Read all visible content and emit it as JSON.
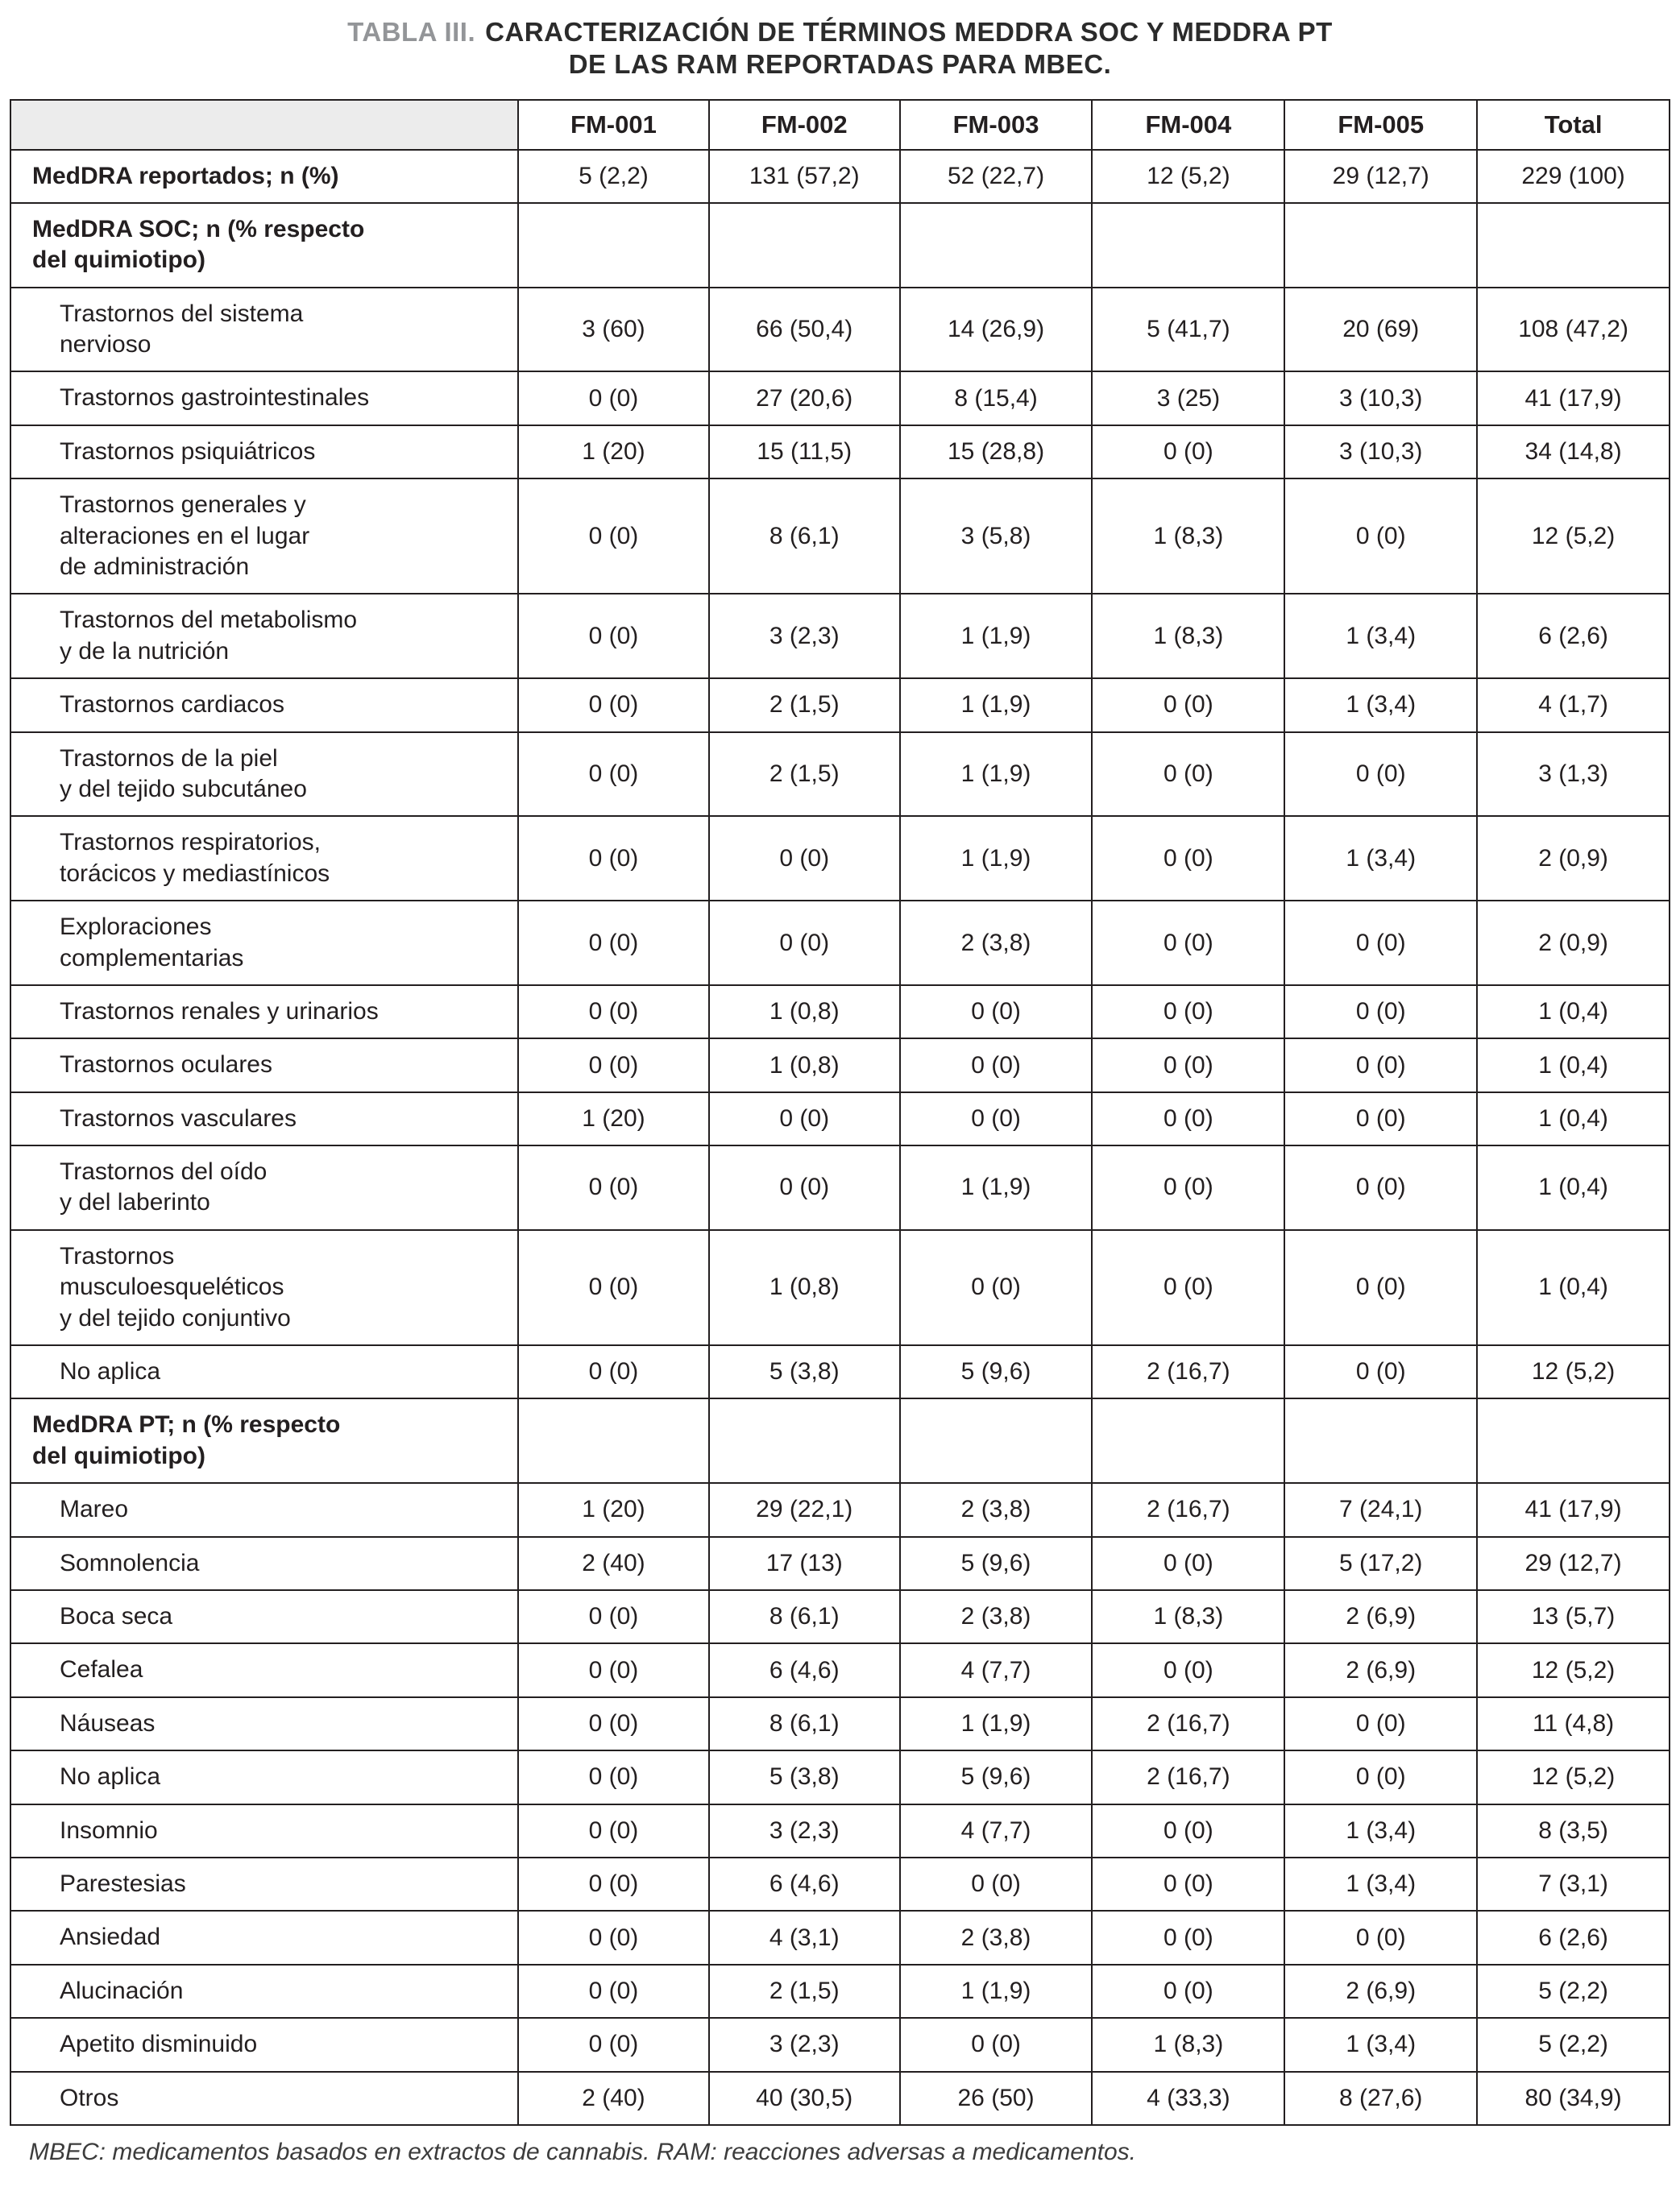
{
  "title": {
    "label": "TABLA III.",
    "text": "CARACTERIZACIÓN DE TÉRMINOS MEDDRA SOC Y MEDDRA PT\nDE LAS RAM REPORTADAS PARA MBEC."
  },
  "table": {
    "columns": [
      "",
      "FM-001",
      "FM-002",
      "FM-003",
      "FM-004",
      "FM-005",
      "Total"
    ],
    "rows": [
      {
        "label": "MedDRA reportados; n (%)",
        "style": "bold",
        "values": [
          "5 (2,2)",
          "131 (57,2)",
          "52 (22,7)",
          "12 (5,2)",
          "29 (12,7)",
          "229 (100)"
        ]
      },
      {
        "label": "MedDRA SOC; n (% respecto\ndel quimiotipo)",
        "style": "section",
        "values": [
          "",
          "",
          "",
          "",
          "",
          ""
        ]
      },
      {
        "label": "Trastornos del sistema\nnervioso",
        "style": "item",
        "values": [
          "3 (60)",
          "66 (50,4)",
          "14 (26,9)",
          "5 (41,7)",
          "20 (69)",
          "108 (47,2)"
        ]
      },
      {
        "label": "Trastornos gastrointestinales",
        "style": "item",
        "values": [
          "0 (0)",
          "27 (20,6)",
          "8 (15,4)",
          "3 (25)",
          "3 (10,3)",
          "41 (17,9)"
        ]
      },
      {
        "label": "Trastornos psiquiátricos",
        "style": "item",
        "values": [
          "1 (20)",
          "15 (11,5)",
          "15 (28,8)",
          "0 (0)",
          "3 (10,3)",
          "34 (14,8)"
        ]
      },
      {
        "label": "Trastornos generales y\nalteraciones en el lugar\nde administración",
        "style": "item",
        "values": [
          "0 (0)",
          "8 (6,1)",
          "3 (5,8)",
          "1 (8,3)",
          "0 (0)",
          "12 (5,2)"
        ]
      },
      {
        "label": "Trastornos del metabolismo\ny de la nutrición",
        "style": "item",
        "values": [
          "0 (0)",
          "3 (2,3)",
          "1 (1,9)",
          "1 (8,3)",
          "1 (3,4)",
          "6 (2,6)"
        ]
      },
      {
        "label": "Trastornos cardiacos",
        "style": "item",
        "values": [
          "0 (0)",
          "2 (1,5)",
          "1 (1,9)",
          "0 (0)",
          "1 (3,4)",
          "4 (1,7)"
        ]
      },
      {
        "label": "Trastornos de la piel\ny del tejido subcutáneo",
        "style": "item",
        "values": [
          "0 (0)",
          "2 (1,5)",
          "1 (1,9)",
          "0 (0)",
          "0 (0)",
          "3 (1,3)"
        ]
      },
      {
        "label": "Trastornos respiratorios,\ntorácicos y mediastínicos",
        "style": "item",
        "values": [
          "0 (0)",
          "0 (0)",
          "1 (1,9)",
          "0 (0)",
          "1 (3,4)",
          "2 (0,9)"
        ]
      },
      {
        "label": "Exploraciones\ncomplementarias",
        "style": "item",
        "values": [
          "0 (0)",
          "0 (0)",
          "2 (3,8)",
          "0 (0)",
          "0 (0)",
          "2 (0,9)"
        ]
      },
      {
        "label": "Trastornos renales y urinarios",
        "style": "item",
        "values": [
          "0 (0)",
          "1 (0,8)",
          "0 (0)",
          "0 (0)",
          "0 (0)",
          "1 (0,4)"
        ]
      },
      {
        "label": "Trastornos oculares",
        "style": "item",
        "values": [
          "0 (0)",
          "1 (0,8)",
          "0 (0)",
          "0 (0)",
          "0 (0)",
          "1 (0,4)"
        ]
      },
      {
        "label": "Trastornos vasculares",
        "style": "item",
        "values": [
          "1 (20)",
          "0 (0)",
          "0 (0)",
          "0 (0)",
          "0 (0)",
          "1 (0,4)"
        ]
      },
      {
        "label": "Trastornos del oído\ny del laberinto",
        "style": "item",
        "values": [
          "0 (0)",
          "0 (0)",
          "1 (1,9)",
          "0 (0)",
          "0 (0)",
          "1 (0,4)"
        ]
      },
      {
        "label": "Trastornos\nmusculoesqueléticos\ny del tejido conjuntivo",
        "style": "item",
        "values": [
          "0 (0)",
          "1 (0,8)",
          "0 (0)",
          "0 (0)",
          "0 (0)",
          "1 (0,4)"
        ]
      },
      {
        "label": "No aplica",
        "style": "item",
        "values": [
          "0 (0)",
          "5 (3,8)",
          "5 (9,6)",
          "2 (16,7)",
          "0 (0)",
          "12 (5,2)"
        ]
      },
      {
        "label": "MedDRA PT; n (% respecto\ndel quimiotipo)",
        "style": "section",
        "values": [
          "",
          "",
          "",
          "",
          "",
          ""
        ]
      },
      {
        "label": "Mareo",
        "style": "item",
        "values": [
          "1 (20)",
          "29 (22,1)",
          "2 (3,8)",
          "2 (16,7)",
          "7 (24,1)",
          "41 (17,9)"
        ]
      },
      {
        "label": "Somnolencia",
        "style": "item",
        "values": [
          "2 (40)",
          "17 (13)",
          "5 (9,6)",
          "0 (0)",
          "5 (17,2)",
          "29 (12,7)"
        ]
      },
      {
        "label": "Boca seca",
        "style": "item",
        "values": [
          "0 (0)",
          "8 (6,1)",
          "2 (3,8)",
          "1 (8,3)",
          "2 (6,9)",
          "13 (5,7)"
        ]
      },
      {
        "label": "Cefalea",
        "style": "item",
        "values": [
          "0 (0)",
          "6 (4,6)",
          "4 (7,7)",
          "0 (0)",
          "2 (6,9)",
          "12 (5,2)"
        ]
      },
      {
        "label": "Náuseas",
        "style": "item",
        "values": [
          "0 (0)",
          "8 (6,1)",
          "1 (1,9)",
          "2 (16,7)",
          "0 (0)",
          "11 (4,8)"
        ]
      },
      {
        "label": "No aplica",
        "style": "item",
        "values": [
          "0 (0)",
          "5 (3,8)",
          "5 (9,6)",
          "2 (16,7)",
          "0 (0)",
          "12 (5,2)"
        ]
      },
      {
        "label": "Insomnio",
        "style": "item",
        "values": [
          "0 (0)",
          "3 (2,3)",
          "4 (7,7)",
          "0 (0)",
          "1 (3,4)",
          "8 (3,5)"
        ]
      },
      {
        "label": "Parestesias",
        "style": "item",
        "values": [
          "0 (0)",
          "6 (4,6)",
          "0 (0)",
          "0 (0)",
          "1 (3,4)",
          "7 (3,1)"
        ]
      },
      {
        "label": "Ansiedad",
        "style": "item",
        "values": [
          "0 (0)",
          "4 (3,1)",
          "2 (3,8)",
          "0 (0)",
          "0 (0)",
          "6 (2,6)"
        ]
      },
      {
        "label": "Alucinación",
        "style": "item",
        "values": [
          "0 (0)",
          "2 (1,5)",
          "1 (1,9)",
          "0 (0)",
          "2 (6,9)",
          "5 (2,2)"
        ]
      },
      {
        "label": "Apetito disminuido",
        "style": "item",
        "values": [
          "0 (0)",
          "3 (2,3)",
          "0 (0)",
          "1 (8,3)",
          "1 (3,4)",
          "5 (2,2)"
        ]
      },
      {
        "label": "Otros",
        "style": "item",
        "values": [
          "2 (40)",
          "40 (30,5)",
          "26 (50)",
          "4 (33,3)",
          "8 (27,6)",
          "80 (34,9)"
        ]
      }
    ]
  },
  "footnote": "MBEC: medicamentos basados en extractos de cannabis. RAM: reacciones adversas a medicamentos."
}
